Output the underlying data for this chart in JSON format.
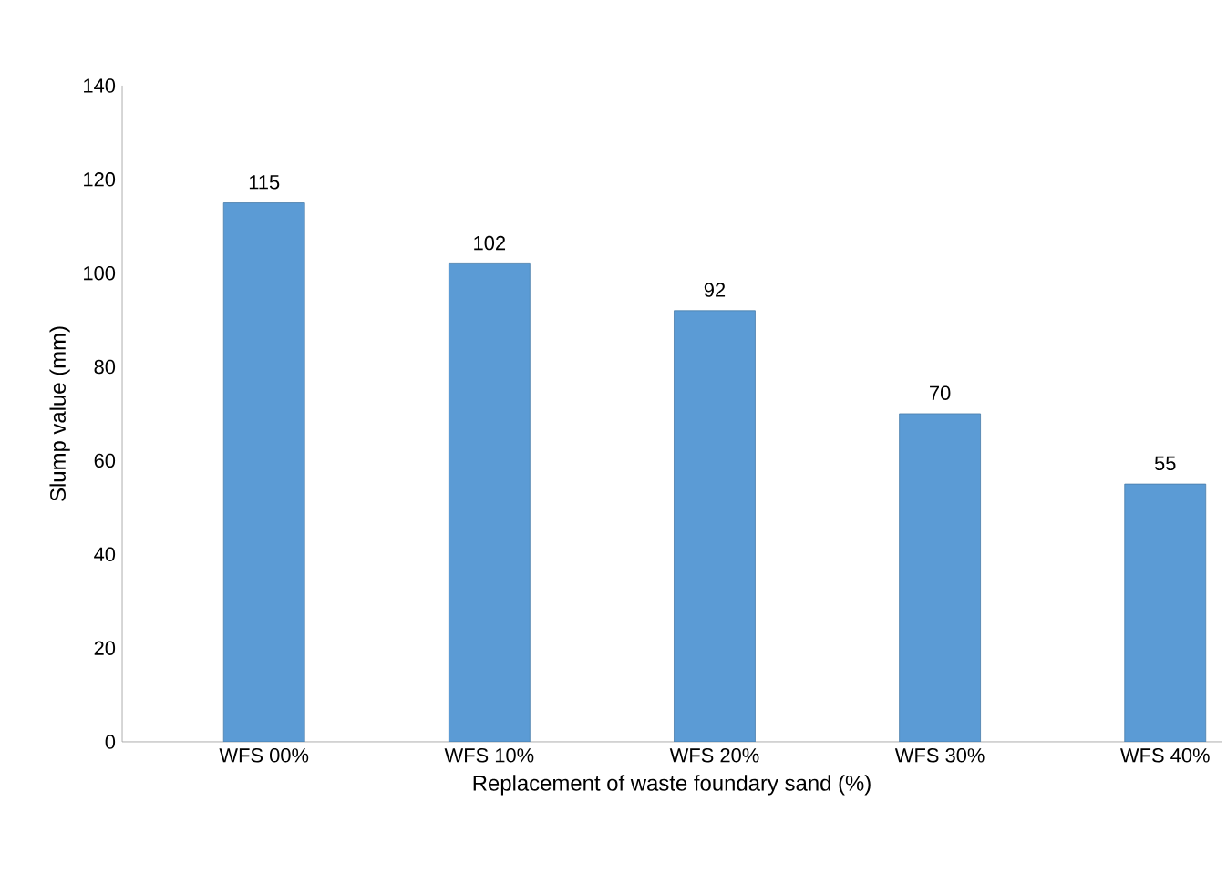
{
  "chart_data": {
    "type": "bar",
    "xlabel": "Replacement of waste foundary sand (%)",
    "ylabel": "Slump value (mm)",
    "categories": [
      "WFS 00%",
      "WFS 10%",
      "WFS 20%",
      "WFS 30%",
      "WFS 40%"
    ],
    "values": [
      115,
      102,
      92,
      70,
      55
    ],
    "color": "#5b9bd5",
    "ylim": [
      0,
      140
    ],
    "yticks": [
      0,
      20,
      40,
      60,
      80,
      100,
      120,
      140
    ],
    "data_labels": true
  }
}
